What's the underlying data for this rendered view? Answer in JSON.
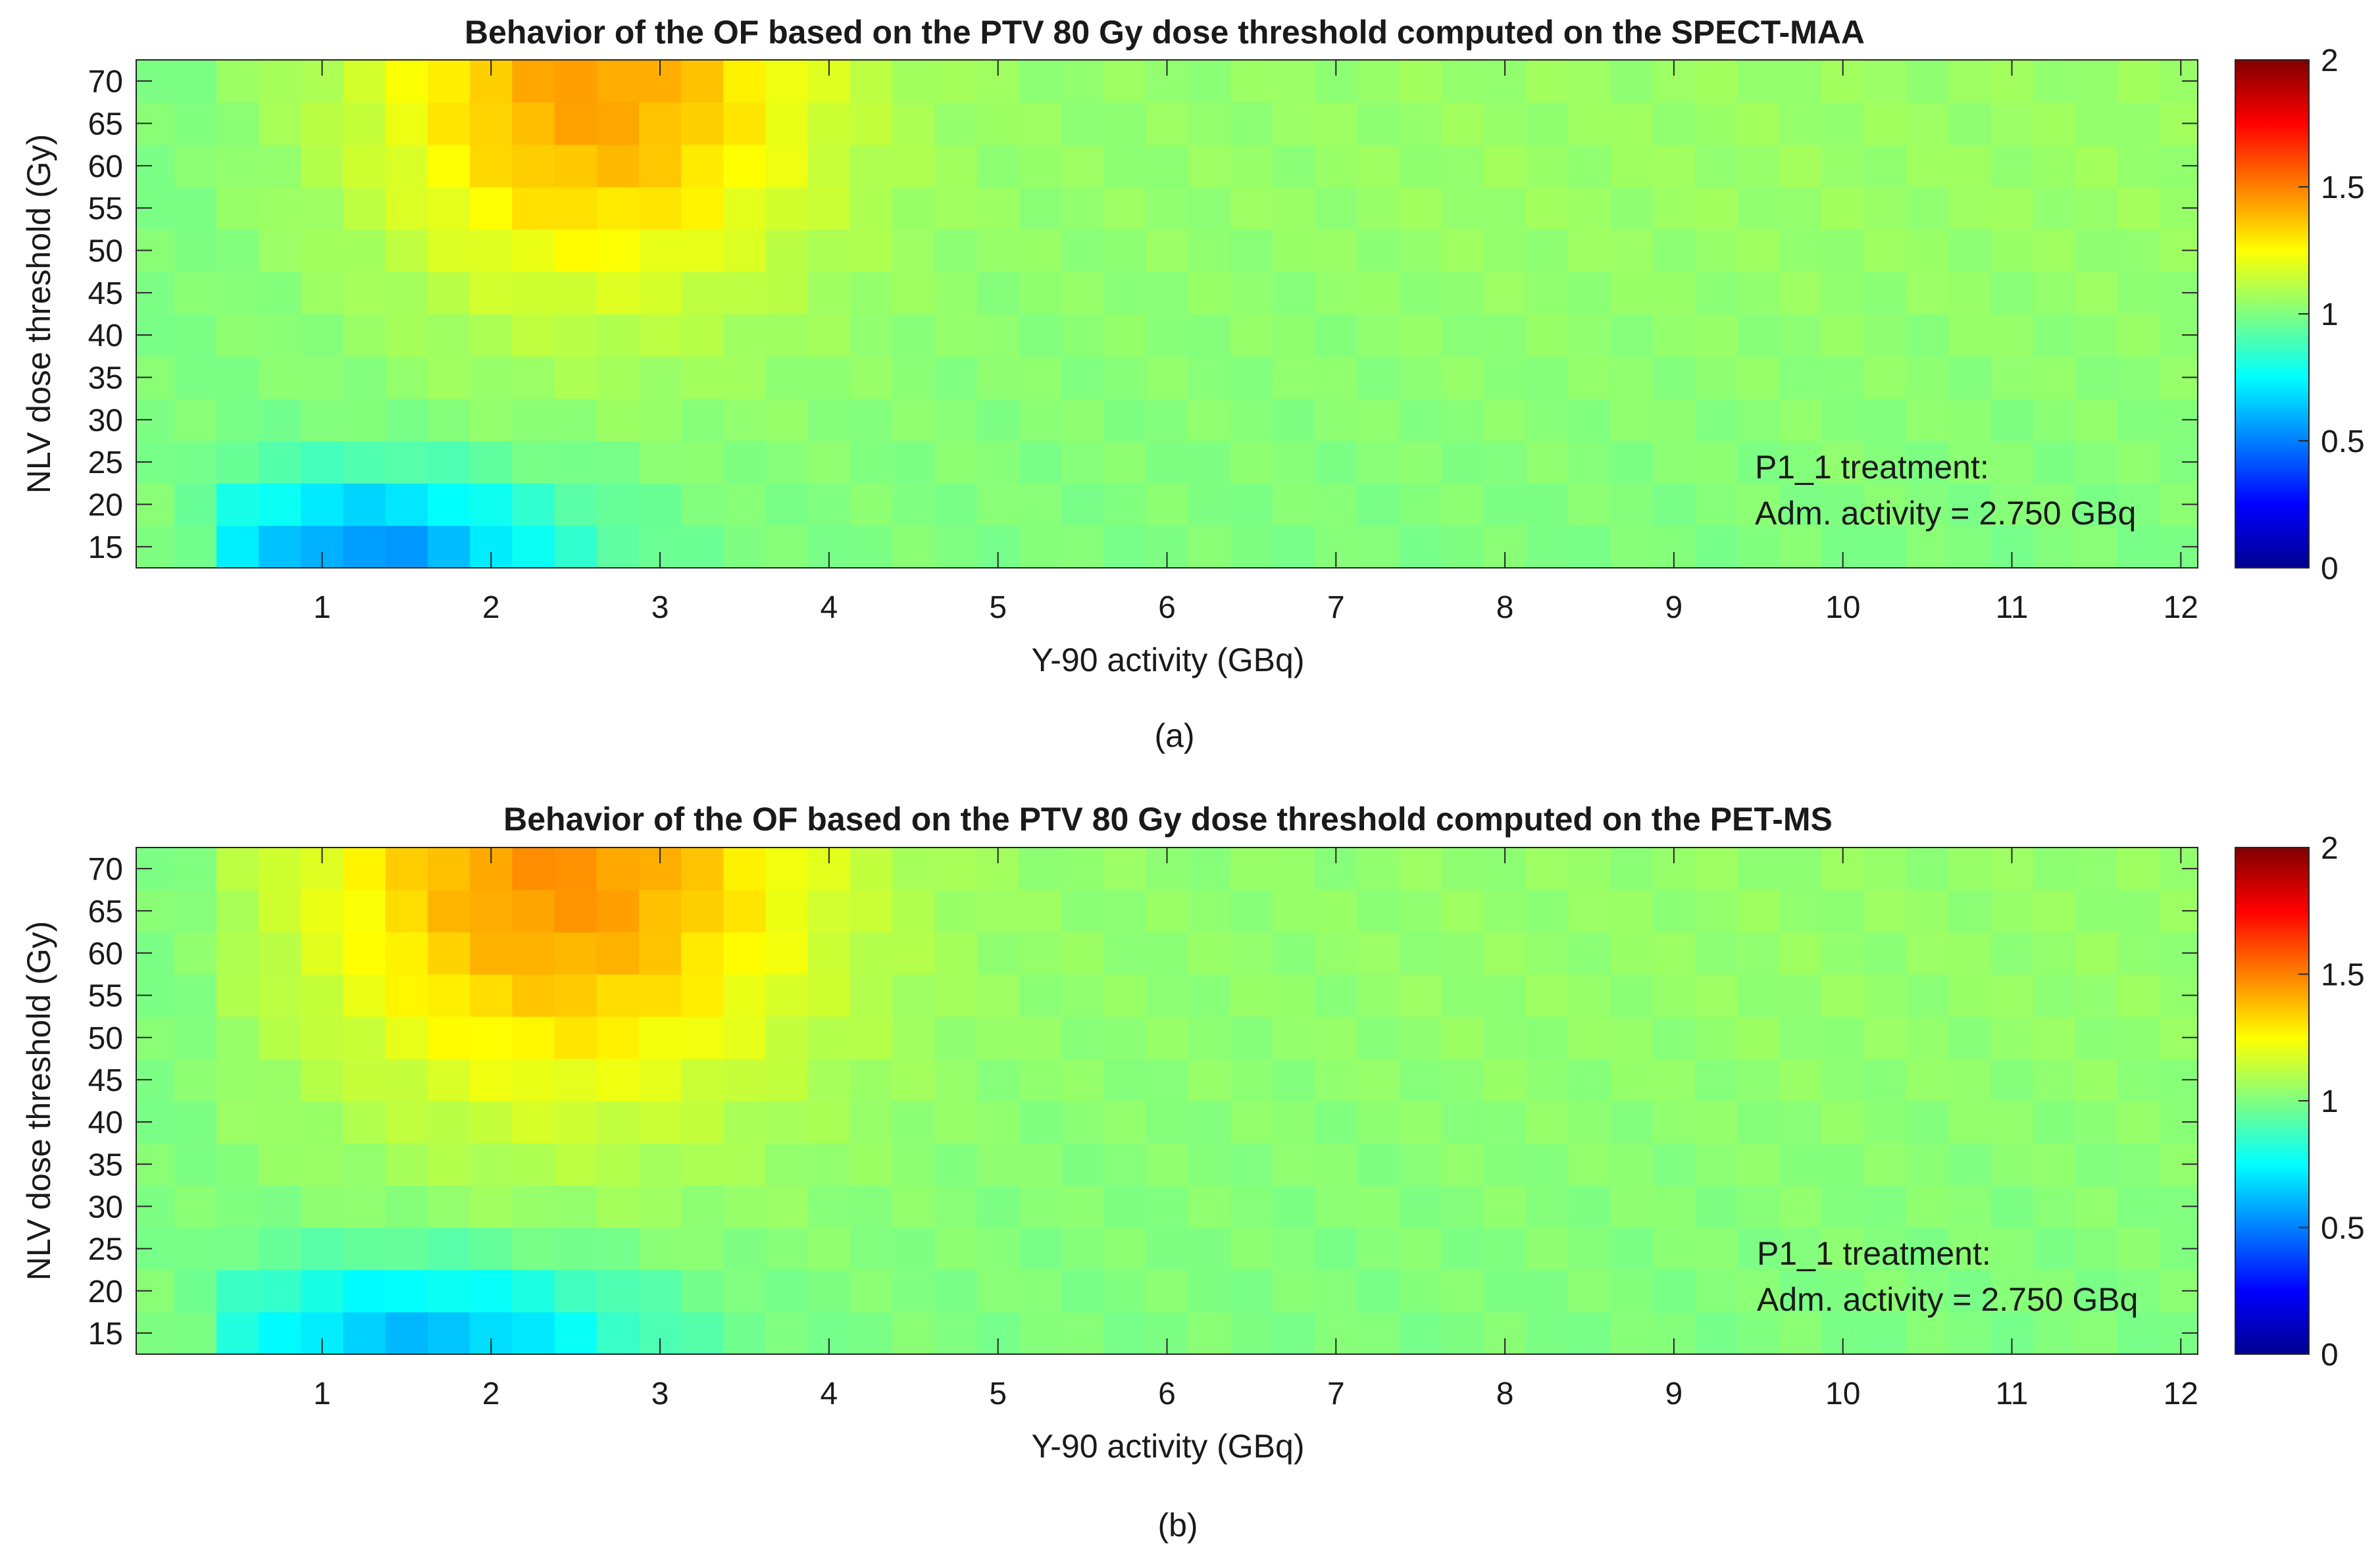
{
  "colormap": {
    "name": "jet",
    "stops": [
      "#00008f",
      "#0000ff",
      "#0080ff",
      "#00ffff",
      "#80ff80",
      "#ffff00",
      "#ff8000",
      "#ff0000",
      "#800000"
    ]
  },
  "chart_data": [
    {
      "type": "heatmap",
      "panel_label": "(a)",
      "title": "Behavior of the OF based on the PTV 80 Gy dose threshold computed on the SPECT-MAA",
      "xlabel": "Y-90 activity (GBq)",
      "ylabel": "NLV dose threshold (Gy)",
      "xlim": [
        -0.1,
        12.1
      ],
      "ylim": [
        12.5,
        72.5
      ],
      "x_ticks": [
        1,
        2,
        3,
        4,
        5,
        6,
        7,
        8,
        9,
        10,
        11,
        12
      ],
      "y_ticks": [
        15,
        20,
        25,
        30,
        35,
        40,
        45,
        50,
        55,
        60,
        65,
        70
      ],
      "colorbar": {
        "min": 0,
        "max": 2,
        "ticks": [
          0,
          0.5,
          1,
          1.5,
          2
        ]
      },
      "annotation": [
        "P1_1 treatment:",
        "Adm. activity = 2.750 GBq"
      ],
      "grid": {
        "x_start": 0,
        "x_step": 0.25,
        "n_cols": 49,
        "y_values": [
          15,
          20,
          25,
          30,
          35,
          40,
          45,
          50,
          55,
          60,
          65,
          70
        ],
        "peak_x": 2.6,
        "peak_y": 70,
        "peak_value": 1.42,
        "peak_sx": 0.95,
        "peak_sy": 18,
        "trough_x": 1.3,
        "trough_y": 15,
        "trough_value": 0.55,
        "trough_sx": 0.8,
        "trough_sy": 6,
        "base_value": 1.0,
        "far_value": 1.05,
        "edge_value": 1.0,
        "ripple": 0.02
      }
    },
    {
      "type": "heatmap",
      "panel_label": "(b)",
      "title": "Behavior of the OF based on the PTV 80 Gy dose threshold computed on the PET-MS",
      "xlabel": "Y-90 activity (GBq)",
      "ylabel": "NLV dose threshold (Gy)",
      "xlim": [
        -0.1,
        12.1
      ],
      "ylim": [
        12.5,
        72.5
      ],
      "x_ticks": [
        1,
        2,
        3,
        4,
        5,
        6,
        7,
        8,
        9,
        10,
        11,
        12
      ],
      "y_ticks": [
        15,
        20,
        25,
        30,
        35,
        40,
        45,
        50,
        55,
        60,
        65,
        70
      ],
      "colorbar": {
        "min": 0,
        "max": 2,
        "ticks": [
          0,
          0.5,
          1,
          1.5,
          2
        ]
      },
      "annotation": [
        "P1_1 treatment:",
        "Adm. activity = 2.750 GBq"
      ],
      "grid": {
        "x_start": 0,
        "x_step": 0.25,
        "n_cols": 49,
        "y_values": [
          15,
          20,
          25,
          30,
          35,
          40,
          45,
          50,
          55,
          60,
          65,
          70
        ],
        "peak_x": 2.4,
        "peak_y": 70,
        "peak_value": 1.45,
        "peak_sx": 1.1,
        "peak_sy": 20,
        "trough_x": 1.6,
        "trough_y": 15,
        "trough_value": 0.62,
        "trough_sx": 0.9,
        "trough_sy": 6,
        "base_value": 1.0,
        "far_value": 1.04,
        "edge_value": 1.0,
        "ripple": 0.02
      }
    }
  ]
}
